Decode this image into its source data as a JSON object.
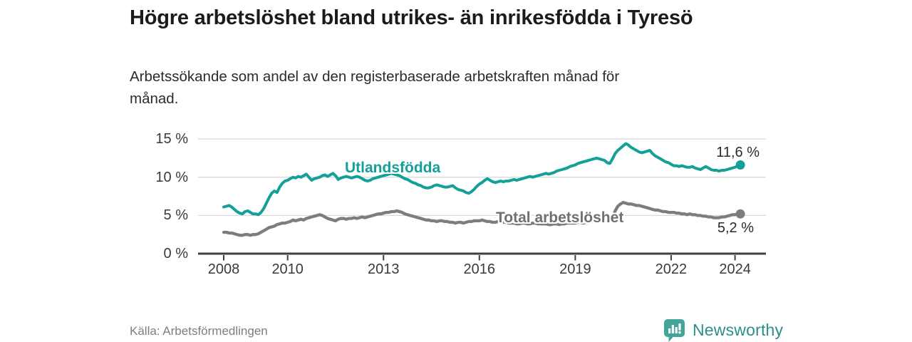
{
  "header": {
    "title": "Högre arbetslöshet bland utrikes- än inrikesfödda i Tyresö",
    "subtitle": "Arbetssökande som andel av den registerbaserade arbetskraften månad för månad."
  },
  "footer": {
    "source": "Källa: Arbetsförmedlingen",
    "brand": "Newsworthy"
  },
  "colors": {
    "accent_teal": "#14a098",
    "line_gray": "#7d7d7d",
    "label_gray": "#6f6f74",
    "grid": "#d9d9d9",
    "axis": "#3f3f3f",
    "brand_teal_icon": "#41a59c",
    "brand_teal_text": "#2d8e87"
  },
  "chart_data": {
    "type": "line",
    "title": "Högre arbetslöshet bland utrikes- än inrikesfödda i Tyresö",
    "subtitle": "Arbetssökande som andel av den registerbaserade arbetskraften månad för månad.",
    "unit": "%",
    "frequency": "monthly",
    "x_start_year": 2008,
    "x_end": "2024-03",
    "x_tick_years": [
      2008,
      2010,
      2013,
      2016,
      2019,
      2022,
      2024
    ],
    "x_tick_labels": [
      "2008",
      "2010",
      "2013",
      "2016",
      "2019",
      "2022",
      "2024"
    ],
    "y_ticks": [
      0,
      5,
      10,
      15
    ],
    "y_tick_labels": [
      "0 %",
      "5 %",
      "10 %",
      "15 %"
    ],
    "ylim": [
      0,
      16
    ],
    "grid": "horizontal",
    "legend_position": "inline-labels",
    "series": [
      {
        "name": "Utlandsfödda",
        "color": "#14a098",
        "end_label": "11,6 %",
        "end_value": 11.6,
        "values": [
          6.1,
          6.2,
          6.3,
          6.1,
          5.8,
          5.5,
          5.3,
          5.2,
          5.5,
          5.6,
          5.4,
          5.2,
          5.2,
          5.1,
          5.4,
          5.9,
          6.6,
          7.3,
          7.9,
          8.2,
          8.0,
          8.7,
          9.2,
          9.5,
          9.6,
          9.8,
          10.0,
          9.9,
          10.1,
          10.0,
          10.2,
          10.4,
          10.0,
          9.6,
          9.8,
          9.9,
          10.0,
          10.2,
          10.3,
          10.1,
          10.3,
          10.5,
          10.2,
          9.7,
          9.9,
          10.0,
          10.1,
          10.0,
          9.9,
          10.0,
          10.1,
          10.0,
          9.8,
          9.6,
          9.5,
          9.6,
          9.8,
          9.9,
          10.0,
          10.1,
          10.2,
          10.3,
          10.4,
          10.5,
          10.4,
          10.3,
          10.2,
          10.0,
          9.8,
          9.7,
          9.5,
          9.3,
          9.2,
          9.0,
          8.9,
          8.7,
          8.6,
          8.6,
          8.7,
          8.9,
          9.0,
          8.9,
          8.8,
          8.7,
          8.7,
          8.8,
          8.9,
          8.6,
          8.4,
          8.3,
          8.2,
          8.0,
          7.9,
          8.1,
          8.4,
          8.8,
          9.1,
          9.3,
          9.6,
          9.8,
          9.6,
          9.4,
          9.3,
          9.4,
          9.5,
          9.4,
          9.5,
          9.5,
          9.6,
          9.7,
          9.6,
          9.7,
          9.8,
          9.9,
          10.0,
          10.1,
          10.0,
          10.1,
          10.2,
          10.3,
          10.4,
          10.5,
          10.4,
          10.5,
          10.6,
          10.8,
          10.9,
          11.0,
          11.1,
          11.2,
          11.4,
          11.5,
          11.6,
          11.8,
          11.9,
          12.0,
          12.1,
          12.2,
          12.3,
          12.4,
          12.5,
          12.4,
          12.3,
          12.2,
          11.9,
          11.8,
          12.4,
          13.1,
          13.5,
          13.8,
          14.1,
          14.4,
          14.2,
          13.9,
          13.7,
          13.5,
          13.3,
          13.2,
          13.3,
          13.4,
          13.5,
          13.1,
          12.8,
          12.6,
          12.4,
          12.2,
          12.0,
          11.9,
          11.7,
          11.5,
          11.5,
          11.4,
          11.5,
          11.4,
          11.3,
          11.3,
          11.4,
          11.2,
          11.1,
          11.0,
          11.2,
          11.4,
          11.2,
          11.0,
          10.9,
          10.9,
          10.8,
          10.9,
          10.9,
          11.0,
          11.1,
          11.2,
          11.3,
          11.5,
          11.6
        ]
      },
      {
        "name": "Total arbetslöshet",
        "color": "#7d7d7d",
        "end_label": "5,2 %",
        "end_value": 5.2,
        "values": [
          2.8,
          2.8,
          2.7,
          2.7,
          2.6,
          2.5,
          2.4,
          2.4,
          2.5,
          2.5,
          2.4,
          2.5,
          2.5,
          2.6,
          2.8,
          3.0,
          3.2,
          3.4,
          3.5,
          3.6,
          3.8,
          3.9,
          4.0,
          4.0,
          4.1,
          4.2,
          4.4,
          4.3,
          4.4,
          4.5,
          4.4,
          4.6,
          4.7,
          4.8,
          4.9,
          5.0,
          5.1,
          5.0,
          4.8,
          4.6,
          4.5,
          4.4,
          4.3,
          4.5,
          4.6,
          4.6,
          4.5,
          4.6,
          4.6,
          4.7,
          4.6,
          4.7,
          4.8,
          4.7,
          4.8,
          4.9,
          5.0,
          5.1,
          5.2,
          5.2,
          5.3,
          5.4,
          5.4,
          5.5,
          5.5,
          5.6,
          5.5,
          5.4,
          5.2,
          5.1,
          5.0,
          4.9,
          4.8,
          4.7,
          4.6,
          4.5,
          4.4,
          4.4,
          4.3,
          4.3,
          4.2,
          4.3,
          4.3,
          4.2,
          4.2,
          4.1,
          4.1,
          4.0,
          4.1,
          4.1,
          4.0,
          4.1,
          4.2,
          4.2,
          4.3,
          4.3,
          4.3,
          4.4,
          4.3,
          4.2,
          4.2,
          4.1,
          4.1,
          4.2,
          4.2,
          4.1,
          4.1,
          4.0,
          4.0,
          4.0,
          3.9,
          3.9,
          4.0,
          4.0,
          3.9,
          3.9,
          4.0,
          4.0,
          3.9,
          3.9,
          3.9,
          3.9,
          3.8,
          3.8,
          3.9,
          3.9,
          3.8,
          3.9,
          3.9,
          4.0,
          4.0,
          4.0,
          4.0,
          4.1,
          4.1,
          4.0,
          4.1,
          4.1,
          4.2,
          4.2,
          4.1,
          4.2,
          4.2,
          4.2,
          4.3,
          4.3,
          4.6,
          5.6,
          6.2,
          6.5,
          6.7,
          6.6,
          6.5,
          6.5,
          6.4,
          6.3,
          6.3,
          6.2,
          6.1,
          6.0,
          5.9,
          5.8,
          5.7,
          5.7,
          5.6,
          5.5,
          5.5,
          5.4,
          5.4,
          5.4,
          5.3,
          5.3,
          5.2,
          5.2,
          5.1,
          5.2,
          5.1,
          5.1,
          5.0,
          5.0,
          4.9,
          4.9,
          4.8,
          4.8,
          4.7,
          4.7,
          4.7,
          4.8,
          4.8,
          4.9,
          5.0,
          5.1,
          5.1,
          5.2,
          5.2
        ]
      }
    ]
  }
}
